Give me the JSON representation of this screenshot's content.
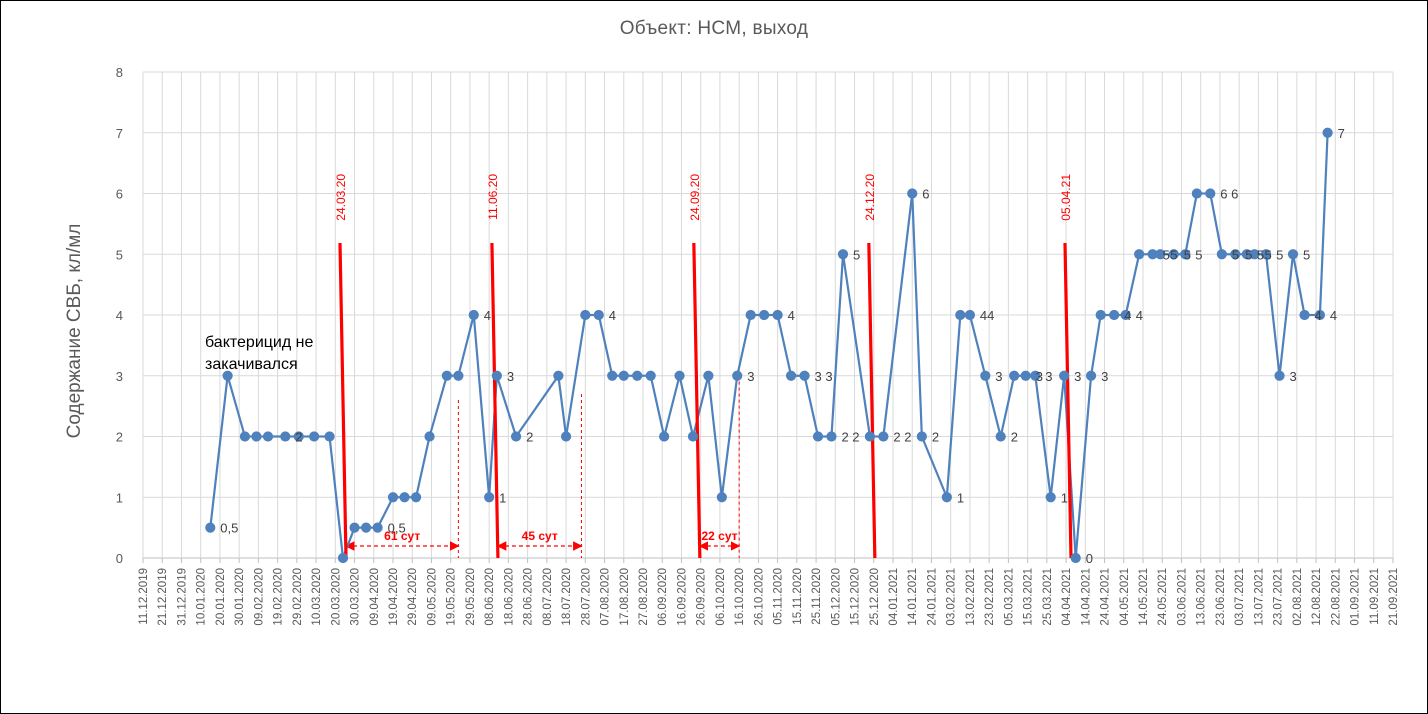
{
  "chart_data": {
    "type": "line",
    "title": "Объект: НСМ, выход",
    "ylabel": "Содержание СВБ, кл/мл",
    "xlabel": "",
    "ylim": [
      0,
      8
    ],
    "yticks": [
      "0",
      "1",
      "2",
      "3",
      "4",
      "5",
      "6",
      "7",
      "8"
    ],
    "grid": true,
    "xticks": [
      "11.12.2019",
      "21.12.2019",
      "31.12.2019",
      "10.01.2020",
      "20.01.2020",
      "30.01.2020",
      "09.02.2020",
      "19.02.2020",
      "29.02.2020",
      "10.03.2020",
      "20.03.2020",
      "30.03.2020",
      "09.04.2020",
      "19.04.2020",
      "29.04.2020",
      "09.05.2020",
      "19.05.2020",
      "29.05.2020",
      "08.06.2020",
      "18.06.2020",
      "28.06.2020",
      "08.07.2020",
      "18.07.2020",
      "28.07.2020",
      "07.08.2020",
      "17.08.2020",
      "27.08.2020",
      "06.09.2020",
      "16.09.2020",
      "26.09.2020",
      "06.10.2020",
      "16.10.2020",
      "26.10.2020",
      "05.11.2020",
      "15.11.2020",
      "25.11.2020",
      "05.12.2020",
      "15.12.2020",
      "25.12.2020",
      "04.01.2021",
      "14.01.2021",
      "24.01.2021",
      "03.02.2021",
      "13.02.2021",
      "23.02.2021",
      "05.03.2021",
      "15.03.2021",
      "25.03.2021",
      "04.04.2021",
      "14.04.2021",
      "24.04.2021",
      "04.05.2021",
      "14.05.2021",
      "24.05.2021",
      "03.06.2021",
      "13.06.2021",
      "23.06.2021",
      "03.07.2021",
      "13.07.2021",
      "23.07.2021",
      "02.08.2021",
      "12.08.2021",
      "22.08.2021",
      "01.09.2021",
      "11.09.2021",
      "21.09.2021"
    ],
    "series": [
      {
        "color": "#4f81bd",
        "points": [
          {
            "x": "2020-01-15",
            "y": 0.5,
            "label": "0,5"
          },
          {
            "x": "2020-01-24",
            "y": 3
          },
          {
            "x": "2020-02-02",
            "y": 2
          },
          {
            "x": "2020-02-08",
            "y": 2
          },
          {
            "x": "2020-02-14",
            "y": 2
          },
          {
            "x": "2020-02-23",
            "y": 2,
            "label": "2"
          },
          {
            "x": "2020-03-01",
            "y": 2
          },
          {
            "x": "2020-03-09",
            "y": 2
          },
          {
            "x": "2020-03-17",
            "y": 2
          },
          {
            "x": "2020-03-24",
            "y": 0
          },
          {
            "x": "2020-03-30",
            "y": 0.5
          },
          {
            "x": "2020-04-05",
            "y": 0.5
          },
          {
            "x": "2020-04-11",
            "y": 0.5,
            "label": "0,5"
          },
          {
            "x": "2020-04-19",
            "y": 1
          },
          {
            "x": "2020-04-25",
            "y": 1
          },
          {
            "x": "2020-05-01",
            "y": 1
          },
          {
            "x": "2020-05-08",
            "y": 2
          },
          {
            "x": "2020-05-17",
            "y": 3
          },
          {
            "x": "2020-05-23",
            "y": 3
          },
          {
            "x": "2020-05-31",
            "y": 4,
            "label": "4"
          },
          {
            "x": "2020-06-08",
            "y": 1,
            "label": "1"
          },
          {
            "x": "2020-06-12",
            "y": 3,
            "label": "3"
          },
          {
            "x": "2020-06-22",
            "y": 2,
            "label": "2"
          },
          {
            "x": "2020-07-14",
            "y": 3
          },
          {
            "x": "2020-07-18",
            "y": 2
          },
          {
            "x": "2020-07-28",
            "y": 4
          },
          {
            "x": "2020-08-04",
            "y": 4,
            "label": "4"
          },
          {
            "x": "2020-08-11",
            "y": 3
          },
          {
            "x": "2020-08-17",
            "y": 3
          },
          {
            "x": "2020-08-24",
            "y": 3
          },
          {
            "x": "2020-08-31",
            "y": 3
          },
          {
            "x": "2020-09-07",
            "y": 2
          },
          {
            "x": "2020-09-15",
            "y": 3
          },
          {
            "x": "2020-09-22",
            "y": 2
          },
          {
            "x": "2020-09-30",
            "y": 3
          },
          {
            "x": "2020-10-07",
            "y": 1
          },
          {
            "x": "2020-10-15",
            "y": 3,
            "label": "3"
          },
          {
            "x": "2020-10-22",
            "y": 4
          },
          {
            "x": "2020-10-29",
            "y": 4
          },
          {
            "x": "2020-11-05",
            "y": 4,
            "label": "4"
          },
          {
            "x": "2020-11-12",
            "y": 3
          },
          {
            "x": "2020-11-19",
            "y": 3,
            "label": "3 3"
          },
          {
            "x": "2020-11-26",
            "y": 2
          },
          {
            "x": "2020-12-03",
            "y": 2,
            "label": "2 2"
          },
          {
            "x": "2020-12-09",
            "y": 5,
            "label": "5"
          },
          {
            "x": "2020-12-23",
            "y": 2
          },
          {
            "x": "2020-12-30",
            "y": 2,
            "label": "2 2"
          },
          {
            "x": "2021-01-14",
            "y": 6,
            "label": "6"
          },
          {
            "x": "2021-01-19",
            "y": 2,
            "label": "2"
          },
          {
            "x": "2021-02-01",
            "y": 1,
            "label": "1"
          },
          {
            "x": "2021-02-08",
            "y": 4
          },
          {
            "x": "2021-02-13",
            "y": 4,
            "label": "44"
          },
          {
            "x": "2021-02-21",
            "y": 3,
            "label": "3"
          },
          {
            "x": "2021-03-01",
            "y": 2,
            "label": "2"
          },
          {
            "x": "2021-03-08",
            "y": 3
          },
          {
            "x": "2021-03-14",
            "y": 3,
            "label": "3"
          },
          {
            "x": "2021-03-19",
            "y": 3,
            "label": "3"
          },
          {
            "x": "2021-03-27",
            "y": 1,
            "label": "1"
          },
          {
            "x": "2021-04-03",
            "y": 3,
            "label": "3"
          },
          {
            "x": "2021-04-09",
            "y": 0,
            "label": "0"
          },
          {
            "x": "2021-04-17",
            "y": 3,
            "label": "3"
          },
          {
            "x": "2021-04-22",
            "y": 4
          },
          {
            "x": "2021-04-29",
            "y": 4,
            "label": "4"
          },
          {
            "x": "2021-05-05",
            "y": 4,
            "label": "4"
          },
          {
            "x": "2021-05-12",
            "y": 5
          },
          {
            "x": "2021-05-19",
            "y": 5,
            "label": "5"
          },
          {
            "x": "2021-05-23",
            "y": 5,
            "label": "5"
          },
          {
            "x": "2021-05-30",
            "y": 5,
            "label": "5"
          },
          {
            "x": "2021-06-05",
            "y": 5,
            "label": "5"
          },
          {
            "x": "2021-06-11",
            "y": 6
          },
          {
            "x": "2021-06-18",
            "y": 6,
            "label": "6 6"
          },
          {
            "x": "2021-06-24",
            "y": 5,
            "label": "5"
          },
          {
            "x": "2021-07-01",
            "y": 5,
            "label": "5"
          },
          {
            "x": "2021-07-07",
            "y": 5,
            "label": "5"
          },
          {
            "x": "2021-07-11",
            "y": 5,
            "label": "5"
          },
          {
            "x": "2021-07-17",
            "y": 5,
            "label": "5"
          },
          {
            "x": "2021-07-24",
            "y": 3,
            "label": "3"
          },
          {
            "x": "2021-07-31",
            "y": 5,
            "label": "5"
          },
          {
            "x": "2021-08-06",
            "y": 4,
            "label": "4"
          },
          {
            "x": "2021-08-14",
            "y": 4,
            "label": "4"
          },
          {
            "x": "2021-08-18",
            "y": 7,
            "label": "7"
          }
        ]
      }
    ],
    "treatment_markers": [
      {
        "date": "2020-03-24",
        "label": "24.03.20"
      },
      {
        "date": "2020-06-11",
        "label": "11.06.20"
      },
      {
        "date": "2020-09-24",
        "label": "24.09.20"
      },
      {
        "date": "2020-12-24",
        "label": "24.12.20"
      },
      {
        "date": "2021-04-05",
        "label": "05.04.21"
      }
    ],
    "intervals": [
      {
        "from": "2020-03-24",
        "to": "2020-05-23",
        "label": "61 сут"
      },
      {
        "from": "2020-06-11",
        "to": "2020-07-26",
        "label": "45 сут"
      },
      {
        "from": "2020-09-24",
        "to": "2020-10-16",
        "label": "22 сут"
      }
    ],
    "annotation": [
      "бактерицид не",
      "закачивался"
    ],
    "colors": {
      "series": "#4f81bd",
      "markers": "#ff0000",
      "grid": "#d9d9d9",
      "text": "#595959"
    }
  }
}
